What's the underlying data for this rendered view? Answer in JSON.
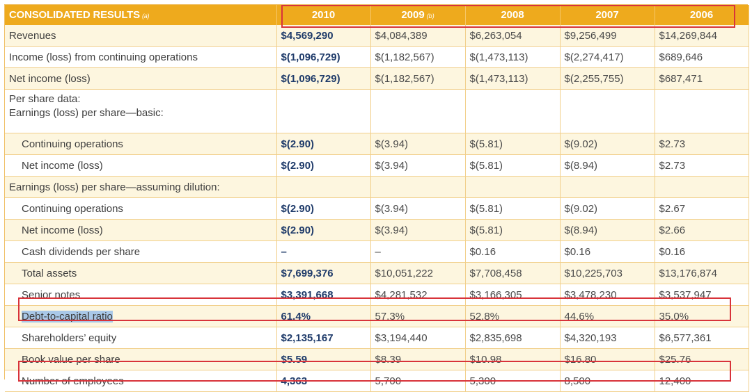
{
  "header": {
    "title": "CONSOLIDATED RESULTS",
    "title_suffix": "(a)",
    "years": [
      {
        "label": "2010",
        "suffix": ""
      },
      {
        "label": "2009",
        "suffix": "(b)"
      },
      {
        "label": "2008",
        "suffix": ""
      },
      {
        "label": "2007",
        "suffix": ""
      },
      {
        "label": "2006",
        "suffix": ""
      }
    ]
  },
  "rows": [
    {
      "label": "Revenues",
      "values": [
        "$4,569,290",
        "$4,084,389",
        "$6,263,054",
        "$9,256,499",
        "$14,269,844"
      ]
    },
    {
      "label": "Income (loss) from continuing operations",
      "values": [
        "$(1,096,729)",
        "$(1,182,567)",
        "$(1,473,113)",
        "$(2,274,417)",
        "$689,646"
      ]
    },
    {
      "label": "Net income (loss)",
      "values": [
        "$(1,096,729)",
        "$(1,182,567)",
        "$(1,473,113)",
        "$(2,255,755)",
        "$687,471"
      ]
    },
    {
      "label_line1": "Per share data:",
      "label_line2": "Earnings (loss) per share—basic:",
      "values": [
        "",
        "",
        "",
        "",
        ""
      ]
    },
    {
      "label": "Continuing operations",
      "values": [
        "$(2.90)",
        "$(3.94)",
        "$(5.81)",
        "$(9.02)",
        "$2.73"
      ]
    },
    {
      "label": "Net income (loss)",
      "values": [
        "$(2.90)",
        "$(3.94)",
        "$(5.81)",
        "$(8.94)",
        "$2.73"
      ]
    },
    {
      "label": "Earnings (loss) per share—assuming dilution:",
      "values": [
        "",
        "",
        "",
        "",
        ""
      ]
    },
    {
      "label": "Continuing operations",
      "values": [
        "$(2.90)",
        "$(3.94)",
        "$(5.81)",
        "$(9.02)",
        "$2.67"
      ]
    },
    {
      "label": "Net income (loss)",
      "values": [
        "$(2.90)",
        "$(3.94)",
        "$(5.81)",
        "$(8.94)",
        "$2.66"
      ]
    },
    {
      "label": "Cash dividends per share",
      "values": [
        "–",
        "–",
        "$0.16",
        "$0.16",
        "$0.16"
      ]
    },
    {
      "label": "Total assets",
      "values": [
        "$7,699,376",
        "$10,051,222",
        "$7,708,458",
        "$10,225,703",
        "$13,176,874"
      ]
    },
    {
      "label": "Senior notes",
      "values": [
        "$3,391,668",
        "$4,281,532",
        "$3,166,305",
        "$3,478,230",
        "$3,537,947"
      ]
    },
    {
      "label": "Debt-to-capital ratio",
      "values": [
        "61.4%",
        "57.3%",
        "52.8%",
        "44.6%",
        "35.0%"
      ]
    },
    {
      "label": "Shareholders’ equity",
      "values": [
        "$2,135,167",
        "$3,194,440",
        "$2,835,698",
        "$4,320,193",
        "$6,577,361"
      ]
    },
    {
      "label": "Book value per share",
      "values": [
        "$5.59",
        "$8.39",
        "$10.98",
        "$16.80",
        "$25.76"
      ]
    },
    {
      "label": "Number of employees",
      "values": [
        "4,363",
        "5,700",
        "5,300",
        "8,500",
        "12,400"
      ]
    }
  ],
  "colors": {
    "header_bg": "#eeaa1d",
    "highlight_box": "#d8333a",
    "text_selection": "#a9c8e8",
    "current_year_text": "#1f3b6a"
  }
}
